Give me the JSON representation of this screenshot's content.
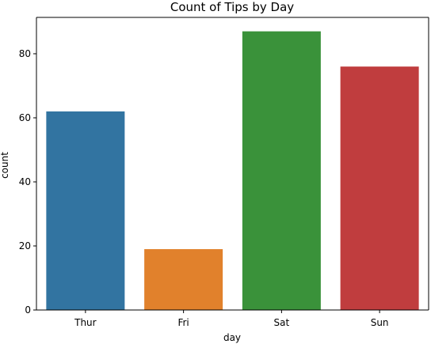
{
  "chart_data": {
    "type": "bar",
    "title": "Count of Tips by Day",
    "xlabel": "day",
    "ylabel": "count",
    "categories": [
      "Thur",
      "Fri",
      "Sat",
      "Sun"
    ],
    "values": [
      62,
      19,
      87,
      76
    ],
    "ylim": [
      0,
      91.35
    ],
    "yticks": [
      0,
      20,
      40,
      60,
      80
    ],
    "yticklabels": [
      "0",
      "20",
      "40",
      "60",
      "80"
    ],
    "colors": [
      "#3274a1",
      "#e1812c",
      "#3a923a",
      "#c03d3e"
    ],
    "grid": false,
    "legend": "none"
  }
}
